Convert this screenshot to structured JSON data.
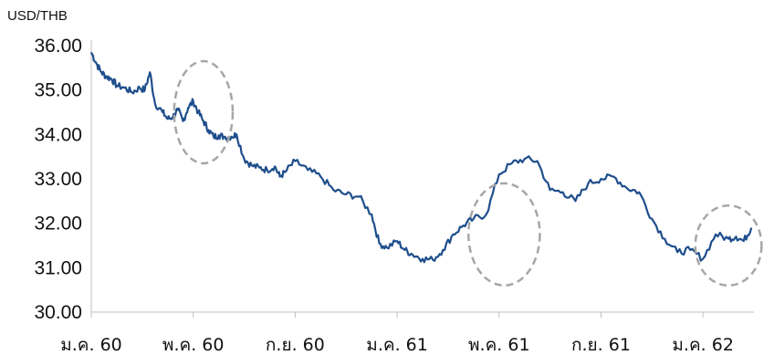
{
  "chart_data": {
    "type": "line",
    "ylabel": "USD/THB",
    "ylim": [
      30.0,
      36.0
    ],
    "ytick_labels": [
      "36.00",
      "35.00",
      "34.00",
      "33.00",
      "32.00",
      "31.00",
      "30.00"
    ],
    "ytick_values": [
      36,
      35,
      34,
      33,
      32,
      31,
      30
    ],
    "xtick_labels": [
      "ม.ค. 60",
      "พ.ค. 60",
      "ก.ย. 60",
      "ม.ค. 61",
      "พ.ค. 61",
      "ก.ย. 61",
      "ม.ค. 62"
    ],
    "x_unit": "months since ม.ค. 60",
    "xlim": [
      0,
      26
    ],
    "grid": false,
    "legend": "none",
    "line_color": "#1f4e8c",
    "highlight_color": "#a6a6a6",
    "series": [
      {
        "x": [
          0,
          0.2,
          0.4,
          0.6,
          0.8,
          1.0,
          1.3,
          1.6,
          1.9,
          2.1,
          2.3,
          2.5,
          2.8,
          3.0,
          3.2,
          3.4,
          3.6,
          3.8,
          4.0,
          4.2,
          4.4,
          4.6,
          4.8,
          5.0,
          5.2,
          5.5,
          5.7,
          6.0,
          6.3,
          6.6,
          6.9,
          7.2,
          7.4,
          7.6,
          8.0,
          8.5,
          9.0,
          9.5,
          10.0,
          10.5,
          11.0,
          11.3,
          11.6,
          12.0,
          12.3,
          12.6,
          13.0,
          13.4,
          13.8,
          14.2,
          14.6,
          15.0,
          15.5,
          16.0,
          16.5,
          17.0,
          17.5,
          18.0,
          18.5,
          19.0,
          19.5,
          20.0,
          20.5,
          21.0,
          21.5,
          22.0,
          22.5,
          23.0,
          23.5,
          24.0,
          24.5,
          25.0,
          25.3,
          25.6,
          25.9
        ],
        "y": [
          35.85,
          35.6,
          35.4,
          35.3,
          35.25,
          35.1,
          35.05,
          34.95,
          35.05,
          35.0,
          35.4,
          34.7,
          34.5,
          34.35,
          34.4,
          34.55,
          34.3,
          34.6,
          34.75,
          34.5,
          34.3,
          34.1,
          33.95,
          33.98,
          33.95,
          33.95,
          34.0,
          33.45,
          33.3,
          33.25,
          33.2,
          33.28,
          33.05,
          33.15,
          33.4,
          33.2,
          33.05,
          32.75,
          32.65,
          32.6,
          32.2,
          31.55,
          31.45,
          31.6,
          31.4,
          31.3,
          31.2,
          31.18,
          31.4,
          31.75,
          31.95,
          32.1,
          32.2,
          33.1,
          33.35,
          33.45,
          33.4,
          32.75,
          32.7,
          32.5,
          32.9,
          33.0,
          33.05,
          32.8,
          32.7,
          32.1,
          31.65,
          31.35,
          31.4,
          31.2,
          31.75,
          31.65,
          31.7,
          31.6,
          31.9
        ]
      }
    ]
  },
  "highlights": [
    {
      "cx": 4.4,
      "cy": 34.5,
      "rx": 1.15,
      "ry": 1.15
    },
    {
      "cx": 16.2,
      "cy": 31.75,
      "rx": 1.4,
      "ry": 1.15
    },
    {
      "cx": 25.0,
      "cy": 31.5,
      "rx": 1.3,
      "ry": 0.9
    }
  ]
}
